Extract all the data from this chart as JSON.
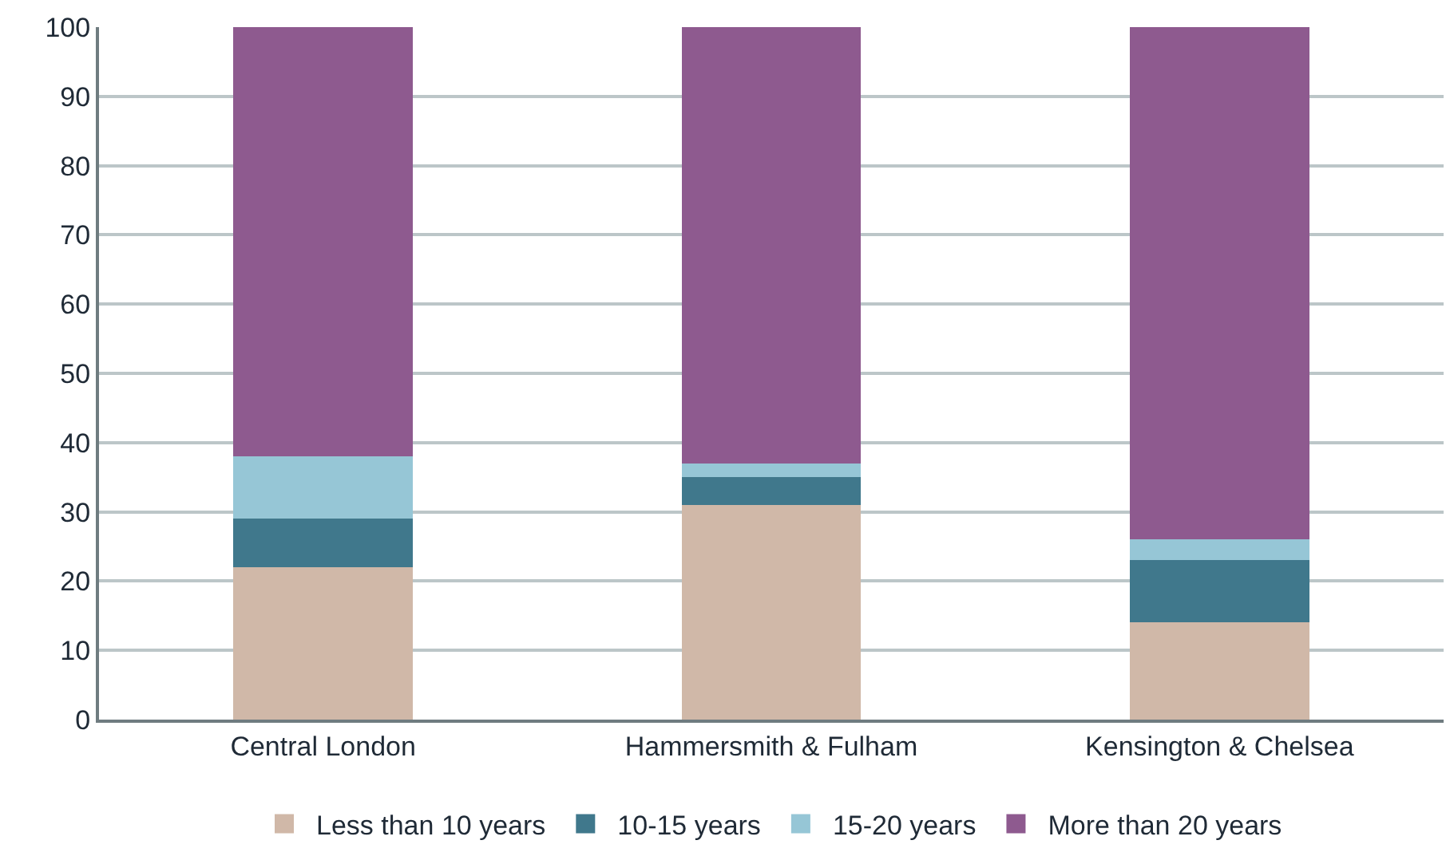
{
  "chart_data": {
    "type": "bar",
    "stacked": true,
    "categories": [
      "Central London",
      "Hammersmith & Fulham",
      "Kensington & Chelsea"
    ],
    "series": [
      {
        "name": "Less than 10 years",
        "color": "#d0b8a8",
        "values": [
          22,
          31,
          14
        ]
      },
      {
        "name": "10-15 years",
        "color": "#40788c",
        "values": [
          7,
          4,
          9
        ]
      },
      {
        "name": "15-20 years",
        "color": "#96c6d6",
        "values": [
          9,
          2,
          3
        ]
      },
      {
        "name": "More than 20 years",
        "color": "#8e5a8f",
        "values": [
          62,
          63,
          74
        ]
      }
    ],
    "ylim": [
      0,
      100
    ],
    "yticks": [
      0,
      10,
      20,
      30,
      40,
      50,
      60,
      70,
      80,
      90,
      100
    ],
    "grid": "y",
    "legend": "bottom"
  }
}
